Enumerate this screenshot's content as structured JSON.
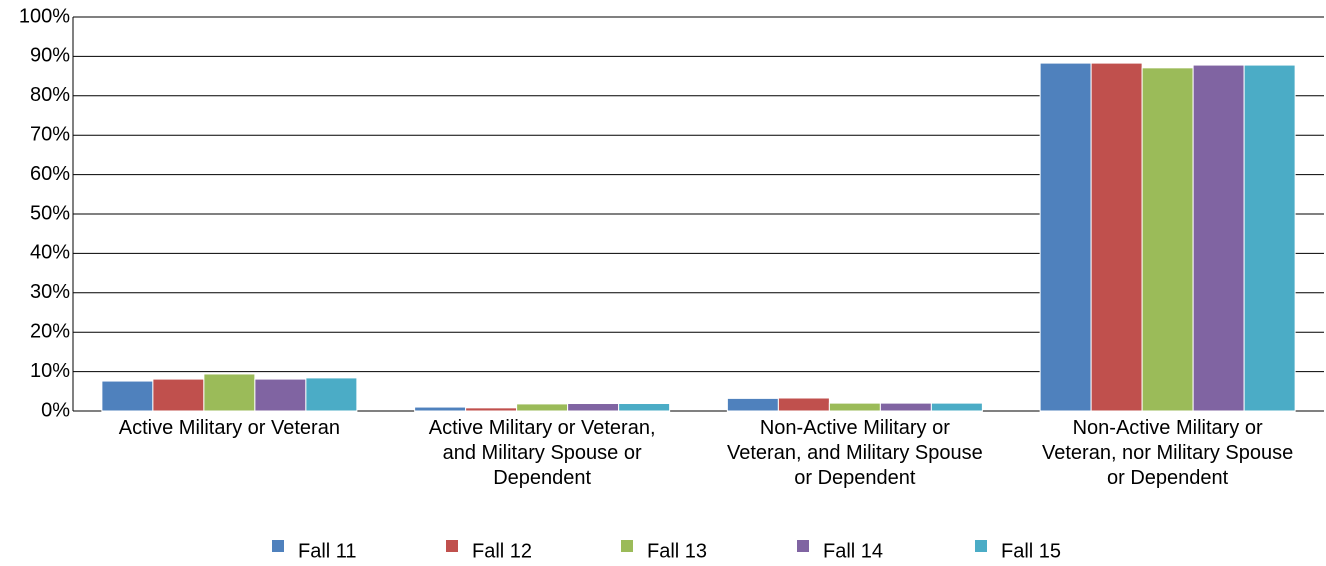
{
  "chart_data": {
    "type": "bar",
    "categories": [
      "Active Military or Veteran",
      "Active Military or Veteran, and Military Spouse or Dependent",
      "Non-Active Military or Veteran, and Military Spouse or Dependent",
      "Non-Active Military or Veteran, nor Military Spouse or Dependent"
    ],
    "series": [
      {
        "name": "Fall 11",
        "color": "#4f81bd",
        "values": [
          7.6,
          1.0,
          3.2,
          88.3
        ]
      },
      {
        "name": "Fall 12",
        "color": "#c0504d",
        "values": [
          8.1,
          0.8,
          3.3,
          88.3
        ]
      },
      {
        "name": "Fall 13",
        "color": "#9bbb59",
        "values": [
          9.4,
          1.8,
          2.0,
          87.1
        ]
      },
      {
        "name": "Fall 14",
        "color": "#8064a2",
        "values": [
          8.1,
          1.9,
          2.0,
          87.8
        ]
      },
      {
        "name": "Fall 15",
        "color": "#4bacc6",
        "values": [
          8.4,
          1.9,
          2.0,
          87.8
        ]
      }
    ],
    "ylim": [
      0,
      100
    ],
    "yticks": [
      {
        "value": 0,
        "label": "0%"
      },
      {
        "value": 10,
        "label": "10%"
      },
      {
        "value": 20,
        "label": "20%"
      },
      {
        "value": 30,
        "label": "30%"
      },
      {
        "value": 40,
        "label": "40%"
      },
      {
        "value": 50,
        "label": "50%"
      },
      {
        "value": 60,
        "label": "60%"
      },
      {
        "value": 70,
        "label": "70%"
      },
      {
        "value": 80,
        "label": "80%"
      },
      {
        "value": 90,
        "label": "90%"
      },
      {
        "value": 100,
        "label": "100%"
      }
    ],
    "grid": true,
    "legend": "bottom"
  }
}
